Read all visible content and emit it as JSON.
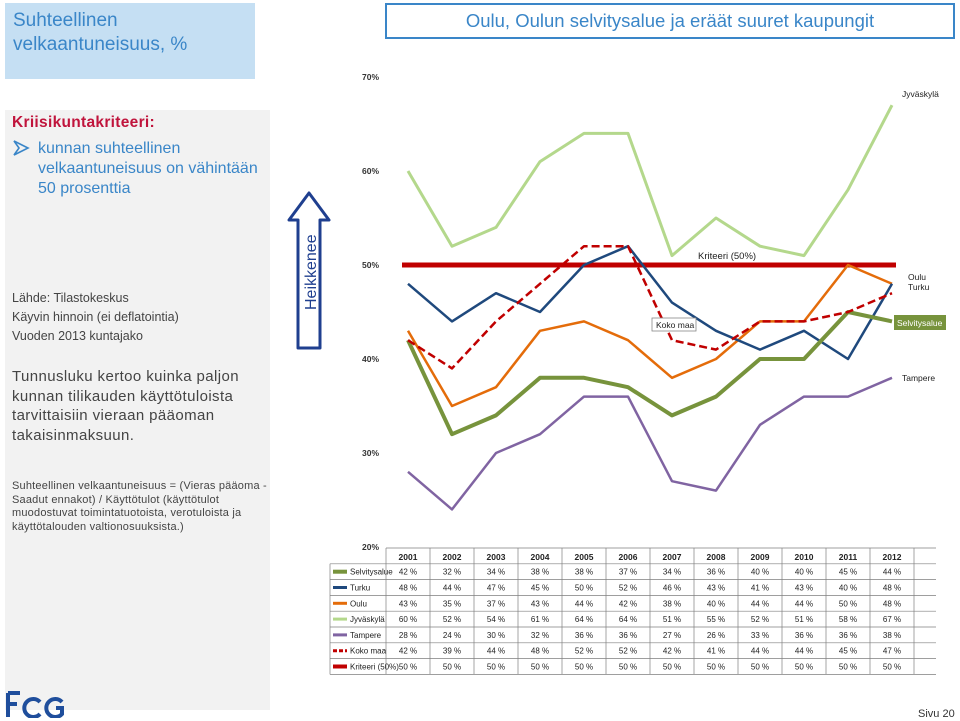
{
  "header": {
    "left_title": "Suhteellinen velkaantuneisuus, %",
    "right_title": "Oulu, Oulun selvitysalue ja eräät suuret kaupungit"
  },
  "criteria": {
    "heading": "Kriisikuntakriteeri:",
    "bullet": "kunnan suhteellinen velkaantuneisuus on vähintään 50 prosenttia"
  },
  "source": {
    "line1": "Lähde: Tilastokeskus",
    "line2": "Käyvin hinnoin (ei deflatointia)",
    "line3": "Vuoden 2013 kuntajako"
  },
  "explanation": "Tunnusluku kertoo kuinka paljon kunnan tilikauden käyttötuloista tarvittaisiin vieraan pääoman takaisinmaksuun.",
  "formula": "Suhteellinen velkaantuneisuus = (Vieras pääoma - Saadut ennakot) / Käyttötulot (käyttötulot muodostuvat toimintatuotoista, verotuloista ja käyttötalouden valtionosuuksista.)",
  "arrow_label": "Heikkenee",
  "page_label": "Sivu 20",
  "colors": {
    "Selvitysalue": "#77933c",
    "Turku": "#1f497d",
    "Oulu": "#e46c0a",
    "Jyväskylä": "#b4d88c",
    "Tampere": "#8064a2",
    "Koko maa": "#c00000",
    "Kriteeri (50%)": "#c00000",
    "accent": "#3a86c8"
  },
  "chart_data": {
    "type": "line",
    "x": [
      "2001",
      "2002",
      "2003",
      "2004",
      "2005",
      "2006",
      "2007",
      "2008",
      "2009",
      "2010",
      "2011",
      "2012"
    ],
    "ylim": [
      20,
      70
    ],
    "yticks": [
      "20%",
      "30%",
      "40%",
      "50%",
      "60%",
      "70%"
    ],
    "series": [
      {
        "name": "Selvitysalue",
        "values": [
          42,
          32,
          34,
          38,
          38,
          37,
          34,
          36,
          40,
          40,
          45,
          44
        ],
        "labels": [
          "42 %",
          "32 %",
          "34 %",
          "38 %",
          "38 %",
          "37 %",
          "34 %",
          "36 %",
          "40 %",
          "40 %",
          "45 %",
          "44 %"
        ]
      },
      {
        "name": "Turku",
        "values": [
          48,
          44,
          47,
          45,
          50,
          52,
          46,
          43,
          41,
          43,
          40,
          48
        ],
        "labels": [
          "48 %",
          "44 %",
          "47 %",
          "45 %",
          "50 %",
          "52 %",
          "46 %",
          "43 %",
          "41 %",
          "43 %",
          "40 %",
          "48 %"
        ]
      },
      {
        "name": "Oulu",
        "values": [
          43,
          35,
          37,
          43,
          44,
          42,
          38,
          40,
          44,
          44,
          50,
          48
        ],
        "labels": [
          "43 %",
          "35 %",
          "37 %",
          "43 %",
          "44 %",
          "42 %",
          "38 %",
          "40 %",
          "44 %",
          "44 %",
          "50 %",
          "48 %"
        ]
      },
      {
        "name": "Jyväskylä",
        "values": [
          60,
          52,
          54,
          61,
          64,
          64,
          51,
          55,
          52,
          51,
          58,
          67
        ],
        "labels": [
          "60 %",
          "52 %",
          "54 %",
          "61 %",
          "64 %",
          "64 %",
          "51 %",
          "55 %",
          "52 %",
          "51 %",
          "58 %",
          "67 %"
        ]
      },
      {
        "name": "Tampere",
        "values": [
          28,
          24,
          30,
          32,
          36,
          36,
          27,
          26,
          33,
          36,
          36,
          38
        ],
        "labels": [
          "28 %",
          "24 %",
          "30 %",
          "32 %",
          "36 %",
          "36 %",
          "27 %",
          "26 %",
          "33 %",
          "36 %",
          "36 %",
          "38 %"
        ]
      },
      {
        "name": "Koko maa",
        "values": [
          42,
          39,
          44,
          48,
          52,
          52,
          42,
          41,
          44,
          44,
          45,
          47
        ],
        "labels": [
          "42 %",
          "39 %",
          "44 %",
          "48 %",
          "52 %",
          "52 %",
          "42 %",
          "41 %",
          "44 %",
          "44 %",
          "45 %",
          "47 %"
        ]
      },
      {
        "name": "Kriteeri (50%)",
        "values": [
          50,
          50,
          50,
          50,
          50,
          50,
          50,
          50,
          50,
          50,
          50,
          50
        ],
        "labels": [
          "50 %",
          "50 %",
          "50 %",
          "50 %",
          "50 %",
          "50 %",
          "50 %",
          "50 %",
          "50 %",
          "50 %",
          "50 %",
          "50 %"
        ]
      }
    ],
    "annotations": {
      "jyvaskyla": "Jyväskylä",
      "kriteeri": "Kriteeri (50%)",
      "kokomaa": "Koko maa",
      "oulu": "Oulu",
      "turku": "Turku",
      "selvitysalue": "Selvitysalue",
      "tampere": "Tampere"
    }
  }
}
